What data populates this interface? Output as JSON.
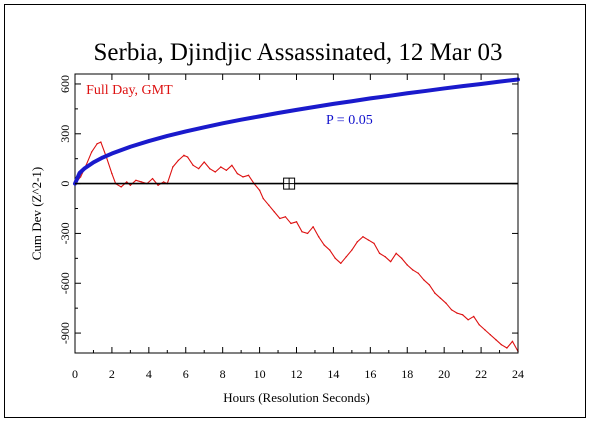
{
  "chart_data": {
    "type": "line",
    "title": "Serbia, Djindjic Assassinated, 12 Mar 03",
    "xlabel": "Hours (Resolution Seconds)",
    "ylabel": "Cum Dev (Z^2-1)",
    "xlim": [
      0,
      24
    ],
    "ylim": [
      -1020,
      660
    ],
    "x_ticks": [
      0,
      2,
      4,
      6,
      8,
      10,
      12,
      14,
      16,
      18,
      20,
      22,
      24
    ],
    "y_ticks": [
      600,
      300,
      0,
      -300,
      -600,
      -900
    ],
    "grid": false,
    "annotations": [
      {
        "text": "Full Day, GMT",
        "color": "#dd1111",
        "x": 0.6,
        "y": 540
      },
      {
        "text": "P = 0.05",
        "color": "#1111cc",
        "x": 13.6,
        "y": 360
      }
    ],
    "marker": {
      "x": 11.6,
      "y": 0,
      "shape": "boxed-cross"
    },
    "series": [
      {
        "name": "Full Day, GMT",
        "color": "#dd1111",
        "x": [
          0,
          0.3,
          0.6,
          0.9,
          1.2,
          1.4,
          1.7,
          2.0,
          2.2,
          2.5,
          2.8,
          3.0,
          3.3,
          3.6,
          3.9,
          4.2,
          4.5,
          4.8,
          5.0,
          5.3,
          5.6,
          5.9,
          6.1,
          6.4,
          6.7,
          7.0,
          7.3,
          7.6,
          7.9,
          8.2,
          8.5,
          8.8,
          9.1,
          9.4,
          9.7,
          10.0,
          10.2,
          10.5,
          10.8,
          11.1,
          11.4,
          11.7,
          12.0,
          12.3,
          12.6,
          12.9,
          13.2,
          13.5,
          13.8,
          14.1,
          14.4,
          14.7,
          15.0,
          15.3,
          15.6,
          15.9,
          16.2,
          16.5,
          16.8,
          17.1,
          17.4,
          17.7,
          18.0,
          18.3,
          18.6,
          18.9,
          19.2,
          19.5,
          19.8,
          20.1,
          20.4,
          20.7,
          21.0,
          21.3,
          21.6,
          21.9,
          22.2,
          22.5,
          22.8,
          23.1,
          23.4,
          23.7,
          24.0
        ],
        "values": [
          0,
          40,
          110,
          190,
          240,
          250,
          160,
          60,
          0,
          -20,
          10,
          -10,
          20,
          10,
          0,
          30,
          -10,
          10,
          0,
          100,
          140,
          170,
          160,
          110,
          90,
          130,
          90,
          70,
          100,
          80,
          110,
          60,
          40,
          50,
          0,
          -40,
          -90,
          -130,
          -170,
          -210,
          -200,
          -240,
          -230,
          -290,
          -300,
          -260,
          -320,
          -370,
          -400,
          -450,
          -480,
          -440,
          -400,
          -350,
          -320,
          -340,
          -360,
          -420,
          -440,
          -470,
          -420,
          -450,
          -490,
          -520,
          -540,
          -580,
          -610,
          -660,
          -690,
          -720,
          -760,
          -780,
          -790,
          -820,
          -800,
          -850,
          -880,
          -910,
          -940,
          -970,
          -990,
          -950,
          -1010
        ]
      },
      {
        "name": "P = 0.05",
        "color": "#1a1acc",
        "x": [
          0,
          0.25,
          0.5,
          1,
          1.5,
          2,
          3,
          4,
          5,
          6,
          7,
          8,
          9,
          10,
          11,
          12,
          13,
          14,
          15,
          16,
          17,
          18,
          19,
          20,
          21,
          22,
          23,
          24
        ],
        "values": [
          0,
          64,
          90,
          128,
          157,
          181,
          222,
          256,
          287,
          314,
          339,
          363,
          385,
          405,
          425,
          444,
          462,
          480,
          496,
          513,
          528,
          544,
          558,
          573,
          587,
          600,
          614,
          627
        ]
      }
    ]
  }
}
